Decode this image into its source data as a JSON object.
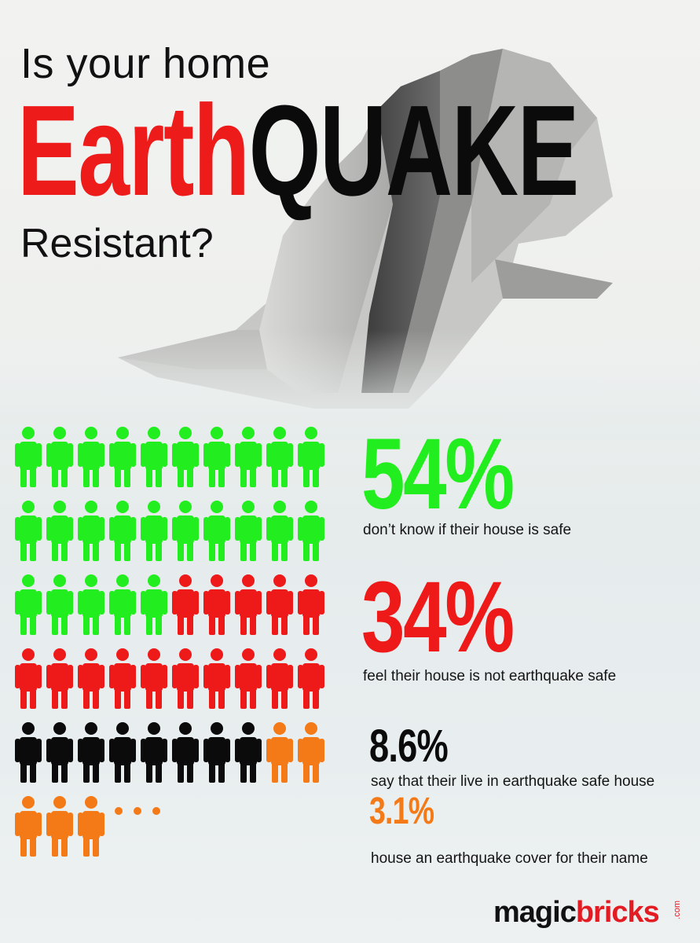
{
  "title": {
    "line1": "Is your home",
    "big_red": "Earth",
    "big_black": "QUAKE",
    "line3": "Resistant?"
  },
  "stats": [
    {
      "value": "54%",
      "description": "don’t know if their house is safe",
      "color": "#22ee1f"
    },
    {
      "value": "34%",
      "description": "feel their house is not earthquake safe",
      "color": "#ee1a1a"
    },
    {
      "value": "8.6%",
      "description": "say that their live in earthquake safe house",
      "color": "#0b0b0b"
    },
    {
      "value": "3.1%",
      "description": "house an earthquake cover for their name",
      "color": "#f47a18"
    }
  ],
  "chart_data": {
    "type": "pictograph",
    "icon": "person-icon",
    "icons_per_row": 10,
    "series": [
      {
        "name": "don’t know if their house is safe",
        "value_pct": 54,
        "icon_count": 25,
        "color": "#22ee1f"
      },
      {
        "name": "feel their house is not earthquake safe",
        "value_pct": 34,
        "icon_count": 15,
        "color": "#ee1a1a"
      },
      {
        "name": "say that their live in earthquake safe house",
        "value_pct": 8.6,
        "icon_count": 8,
        "color": "#0b0b0b"
      },
      {
        "name": "house an earthquake cover for their name",
        "value_pct": 3.1,
        "icon_count": 5,
        "color": "#f47a18"
      }
    ],
    "trailing_ellipsis": "..."
  },
  "logo": {
    "magic": "magic",
    "bricks": "bricks",
    "com": ".com"
  }
}
